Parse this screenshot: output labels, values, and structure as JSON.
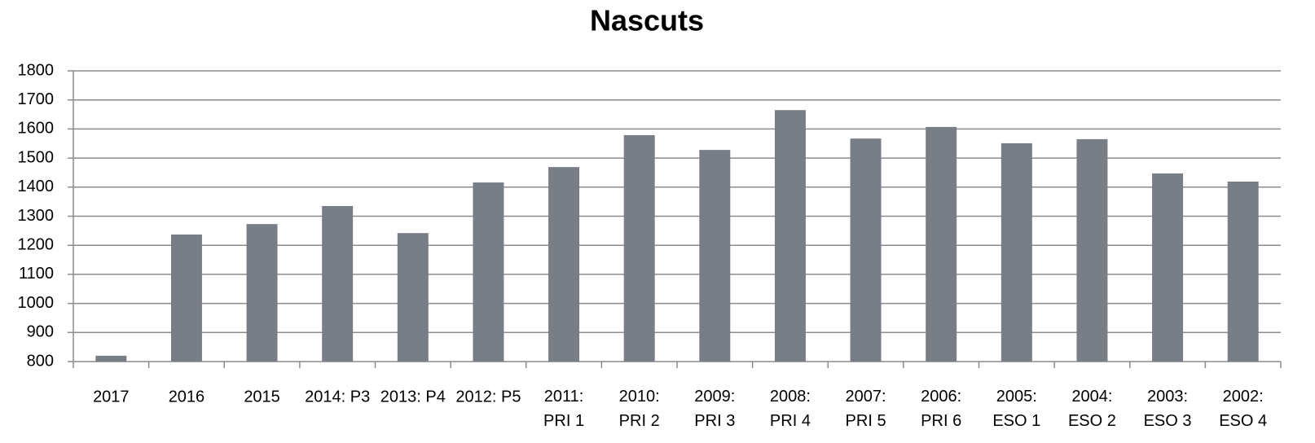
{
  "chart_data": {
    "type": "bar",
    "title": "Nascuts",
    "categories": [
      "2017",
      "2016",
      "2015",
      "2014: P3",
      "2013: P4",
      "2012: P5",
      "2011:\nPRI 1",
      "2010:\nPRI 2",
      "2009:\nPRI 3",
      "2008:\nPRI 4",
      "2007:\nPRI 5",
      "2006:\nPRI 6",
      "2005:\nESO 1",
      "2004:\nESO 2",
      "2003:\nESO 3",
      "2002:\nESO 4"
    ],
    "values": [
      820,
      1237,
      1273,
      1335,
      1242,
      1416,
      1469,
      1579,
      1528,
      1665,
      1567,
      1607,
      1551,
      1565,
      1447,
      1419
    ],
    "color": "#797d86",
    "ylim": [
      800,
      1800
    ],
    "yticks": [
      800,
      900,
      1000,
      1100,
      1200,
      1300,
      1400,
      1500,
      1600,
      1700,
      1800
    ],
    "grid": true
  }
}
